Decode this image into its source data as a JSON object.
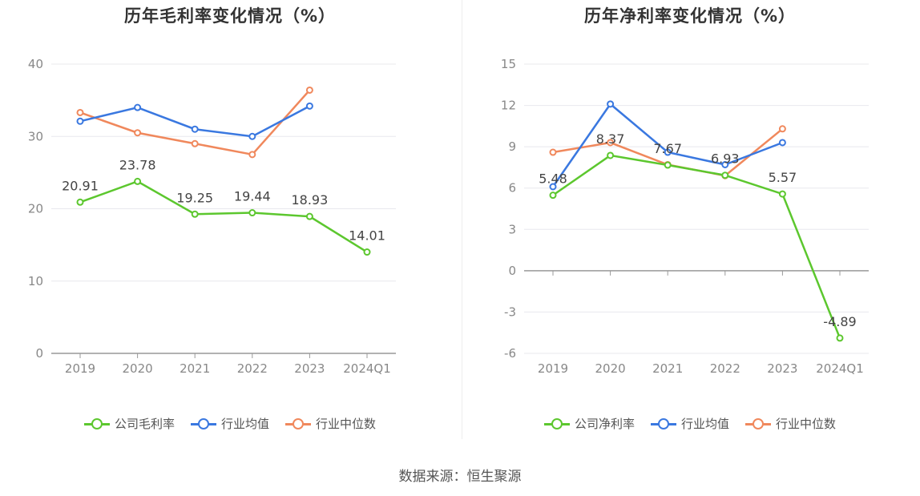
{
  "chart_data": [
    {
      "type": "line",
      "title": "历年毛利率变化情况（%）",
      "categories": [
        "2019",
        "2020",
        "2021",
        "2022",
        "2023",
        "2024Q1"
      ],
      "ylim": [
        0,
        40
      ],
      "yticks": [
        0,
        10,
        20,
        30,
        40
      ],
      "grid": true,
      "legend_position": "bottom",
      "series": [
        {
          "name": "公司毛利率",
          "color": "#5cc72e",
          "values": [
            20.91,
            23.78,
            19.25,
            19.44,
            18.93,
            14.01
          ],
          "labels": [
            "20.91",
            "23.78",
            "19.25",
            "19.44",
            "18.93",
            "14.01"
          ]
        },
        {
          "name": "行业均值",
          "color": "#3a78e0",
          "values": [
            32.1,
            34.0,
            31.0,
            30.0,
            34.2,
            null
          ],
          "labels": []
        },
        {
          "name": "行业中位数",
          "color": "#f0885c",
          "values": [
            33.3,
            30.5,
            29.0,
            27.5,
            36.4,
            null
          ],
          "labels": []
        }
      ]
    },
    {
      "type": "line",
      "title": "历年净利率变化情况（%）",
      "categories": [
        "2019",
        "2020",
        "2021",
        "2022",
        "2023",
        "2024Q1"
      ],
      "ylim": [
        -6,
        15
      ],
      "yticks": [
        -6,
        -3,
        0,
        3,
        6,
        9,
        12,
        15
      ],
      "grid": true,
      "legend_position": "bottom",
      "series": [
        {
          "name": "公司净利率",
          "color": "#5cc72e",
          "values": [
            5.48,
            8.37,
            7.67,
            6.93,
            5.57,
            -4.89
          ],
          "labels": [
            "5.48",
            "8.37",
            "7.67",
            "6.93",
            "5.57",
            "-4.89"
          ]
        },
        {
          "name": "行业均值",
          "color": "#3a78e0",
          "values": [
            6.1,
            12.1,
            8.6,
            7.7,
            9.3,
            null
          ],
          "labels": []
        },
        {
          "name": "行业中位数",
          "color": "#f0885c",
          "values": [
            8.6,
            9.3,
            7.7,
            6.9,
            10.3,
            null
          ],
          "labels": []
        }
      ]
    }
  ],
  "source": "数据来源：恒生聚源"
}
